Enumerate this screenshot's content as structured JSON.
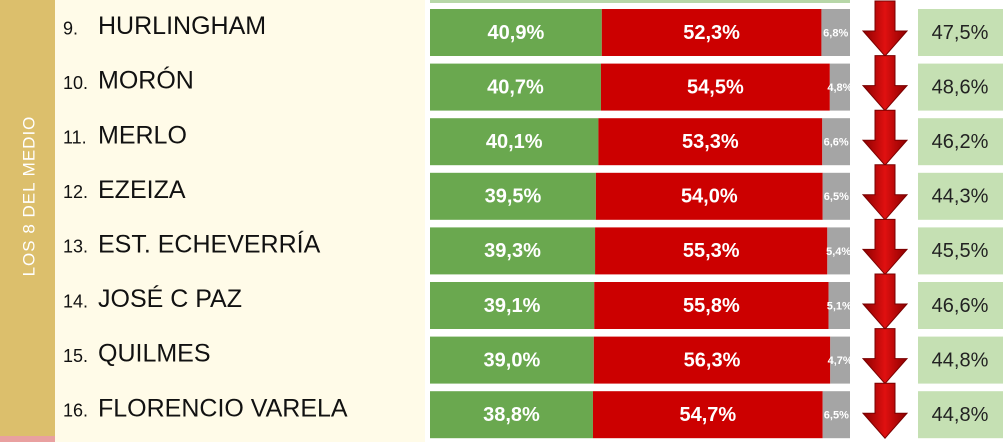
{
  "chart_data": {
    "type": "bar",
    "orientation": "horizontal",
    "stacked": true,
    "group_label": "LOS 8 DEL MEDIO",
    "ranks": [
      "9.",
      "10.",
      "11.",
      "12.",
      "13.",
      "14.",
      "15.",
      "16."
    ],
    "categories": [
      "HURLINGHAM",
      "MORÓN",
      "MERLO",
      "EZEIZA",
      "EST. ECHEVERRÍA",
      "JOSÉ C PAZ",
      "QUILMES",
      "FLORENCIO VARELA"
    ],
    "xlim": [
      0,
      100
    ],
    "series": [
      {
        "color": "#6aa84f",
        "values": [
          40.9,
          40.7,
          40.1,
          39.5,
          39.3,
          39.1,
          39.0,
          38.8
        ],
        "value_labels": [
          "40,9%",
          "40,7%",
          "40,1%",
          "39,5%",
          "39,3%",
          "39,1%",
          "39,0%",
          "38,8%"
        ]
      },
      {
        "color": "#cc0000",
        "values": [
          52.3,
          54.5,
          53.3,
          54.0,
          55.3,
          55.8,
          56.3,
          54.7
        ],
        "value_labels": [
          "52,3%",
          "54,5%",
          "53,3%",
          "54,0%",
          "55,3%",
          "55,8%",
          "56,3%",
          "54,7%"
        ]
      },
      {
        "color": "#a5a5a5",
        "values": [
          6.8,
          4.8,
          6.6,
          6.5,
          5.4,
          5.1,
          4.7,
          6.5
        ],
        "value_labels": [
          "6,8%",
          "4,8%",
          "6,6%",
          "6,5%",
          "5,4%",
          "5,1%",
          "4,7%",
          "6,5%"
        ]
      }
    ],
    "column_values": [
      47.5,
      48.6,
      46.2,
      44.3,
      45.5,
      46.6,
      44.8,
      44.8
    ],
    "column_value_labels": [
      "47,5%",
      "48,6%",
      "46,2%",
      "44,3%",
      "45,5%",
      "46,6%",
      "44,8%",
      "44,8%"
    ]
  }
}
